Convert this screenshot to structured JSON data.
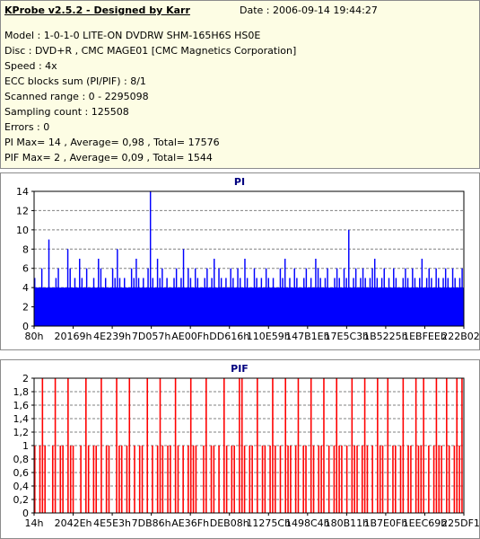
{
  "report": {
    "title": "KProbe v2.5.2 - Designed by Karr",
    "date": "Date : 2006-09-14 19:44:27",
    "lines": [
      "Model : 1-0-1-0 LITE-ON DVDRW SHM-165H6S HS0E",
      "Disc : DVD+R , CMC MAGE01 [CMC Magnetics Corporation]",
      "Speed : 4x",
      "ECC blocks sum (PI/PIF) : 8/1",
      "Scanned range : 0 - 2295098",
      "Sampling count : 125508",
      "Errors : 0",
      "PI Max= 14 , Average= 0,98 , Total= 17576",
      "PIF Max= 2 , Average= 0,09 , Total= 1544"
    ]
  },
  "chart_data": [
    {
      "type": "bar",
      "title": "PI",
      "color": "#0000ff",
      "ylim": [
        0,
        14
      ],
      "y_ticks": [
        "0",
        "2",
        "4",
        "6",
        "8",
        "10",
        "12",
        "14"
      ],
      "x_ticks": [
        "80h",
        "20169h",
        "4E239h",
        "7D057h",
        "AE00Fh",
        "DD616h",
        "110E59h",
        "147B1Eh",
        "17E5C3h",
        "1B5225h",
        "1EBFEEh",
        "222B02h"
      ],
      "baseline": 4,
      "values": [
        5,
        4,
        4,
        6,
        3,
        2,
        9,
        4,
        4,
        5,
        6,
        3,
        4,
        4,
        8,
        6,
        3,
        5,
        4,
        7,
        5,
        4,
        6,
        4,
        3,
        5,
        2,
        7,
        6,
        4,
        5,
        3,
        4,
        6,
        5,
        8,
        5,
        4,
        5,
        3,
        4,
        6,
        5,
        7,
        5,
        3,
        5,
        4,
        6,
        14,
        5,
        4,
        7,
        5,
        6,
        4,
        5,
        3,
        4,
        5,
        6,
        4,
        5,
        8,
        4,
        6,
        5,
        4,
        6,
        5,
        3,
        4,
        5,
        6,
        4,
        5,
        7,
        4,
        6,
        5,
        4,
        5,
        3,
        6,
        5,
        4,
        6,
        5,
        4,
        7,
        5,
        3,
        4,
        6,
        5,
        4,
        5,
        4,
        6,
        5,
        4,
        5,
        3,
        4,
        6,
        5,
        7,
        4,
        5,
        4,
        6,
        5,
        3,
        4,
        5,
        6,
        4,
        5,
        4,
        7,
        6,
        5,
        4,
        5,
        6,
        3,
        4,
        5,
        6,
        5,
        4,
        6,
        5,
        10,
        4,
        5,
        6,
        4,
        5,
        6,
        5,
        4,
        5,
        6,
        7,
        5,
        4,
        5,
        6,
        4,
        5,
        4,
        6,
        5,
        3,
        4,
        5,
        6,
        5,
        4,
        6,
        5,
        4,
        5,
        7,
        4,
        5,
        6,
        5,
        4,
        6,
        5,
        4,
        5,
        6,
        5,
        4,
        6,
        5,
        4,
        5,
        6
      ]
    },
    {
      "type": "bar",
      "title": "PIF",
      "color": "#ff0000",
      "ylim": [
        0,
        2
      ],
      "y_ticks": [
        "0",
        "0,2",
        "0,4",
        "0,6",
        "0,8",
        "1",
        "1,2",
        "1,4",
        "1,6",
        "1,8",
        "2"
      ],
      "x_ticks": [
        "14h",
        "2042Eh",
        "4E5E3h",
        "7DB86h",
        "AE36Fh",
        "DEB08h",
        "11275Ch",
        "1498C4h",
        "180B11h",
        "1B7E0Fh",
        "1EEC69h",
        "225DF1h"
      ],
      "values": [
        1,
        0,
        1,
        2,
        1,
        0,
        0,
        1,
        2,
        0,
        1,
        1,
        0,
        2,
        1,
        1,
        0,
        0,
        1,
        0,
        2,
        1,
        0,
        1,
        1,
        0,
        2,
        0,
        1,
        1,
        0,
        0,
        2,
        1,
        1,
        0,
        1,
        2,
        0,
        1,
        0,
        1,
        1,
        0,
        2,
        0,
        1,
        0,
        1,
        2,
        1,
        0,
        1,
        1,
        0,
        2,
        1,
        0,
        1,
        0,
        1,
        2,
        1,
        1,
        0,
        0,
        1,
        2,
        0,
        1,
        1,
        0,
        1,
        0,
        2,
        1,
        0,
        1,
        1,
        0,
        2,
        2,
        1,
        0,
        1,
        1,
        0,
        2,
        0,
        1,
        1,
        0,
        1,
        2,
        1,
        0,
        1,
        0,
        2,
        1,
        1,
        0,
        1,
        2,
        0,
        1,
        1,
        0,
        2,
        1,
        0,
        1,
        1,
        2,
        0,
        1,
        0,
        1,
        2,
        1,
        1,
        0,
        1,
        0,
        2,
        1,
        1,
        0,
        1,
        2,
        1,
        0,
        1,
        0,
        2,
        1,
        1,
        0,
        2,
        0,
        1,
        1,
        0,
        1,
        2,
        0,
        1,
        1,
        0,
        2,
        1,
        1,
        2,
        0,
        1,
        0,
        1,
        2,
        1,
        1,
        0,
        2,
        1,
        0,
        1,
        2,
        1,
        2
      ]
    }
  ]
}
